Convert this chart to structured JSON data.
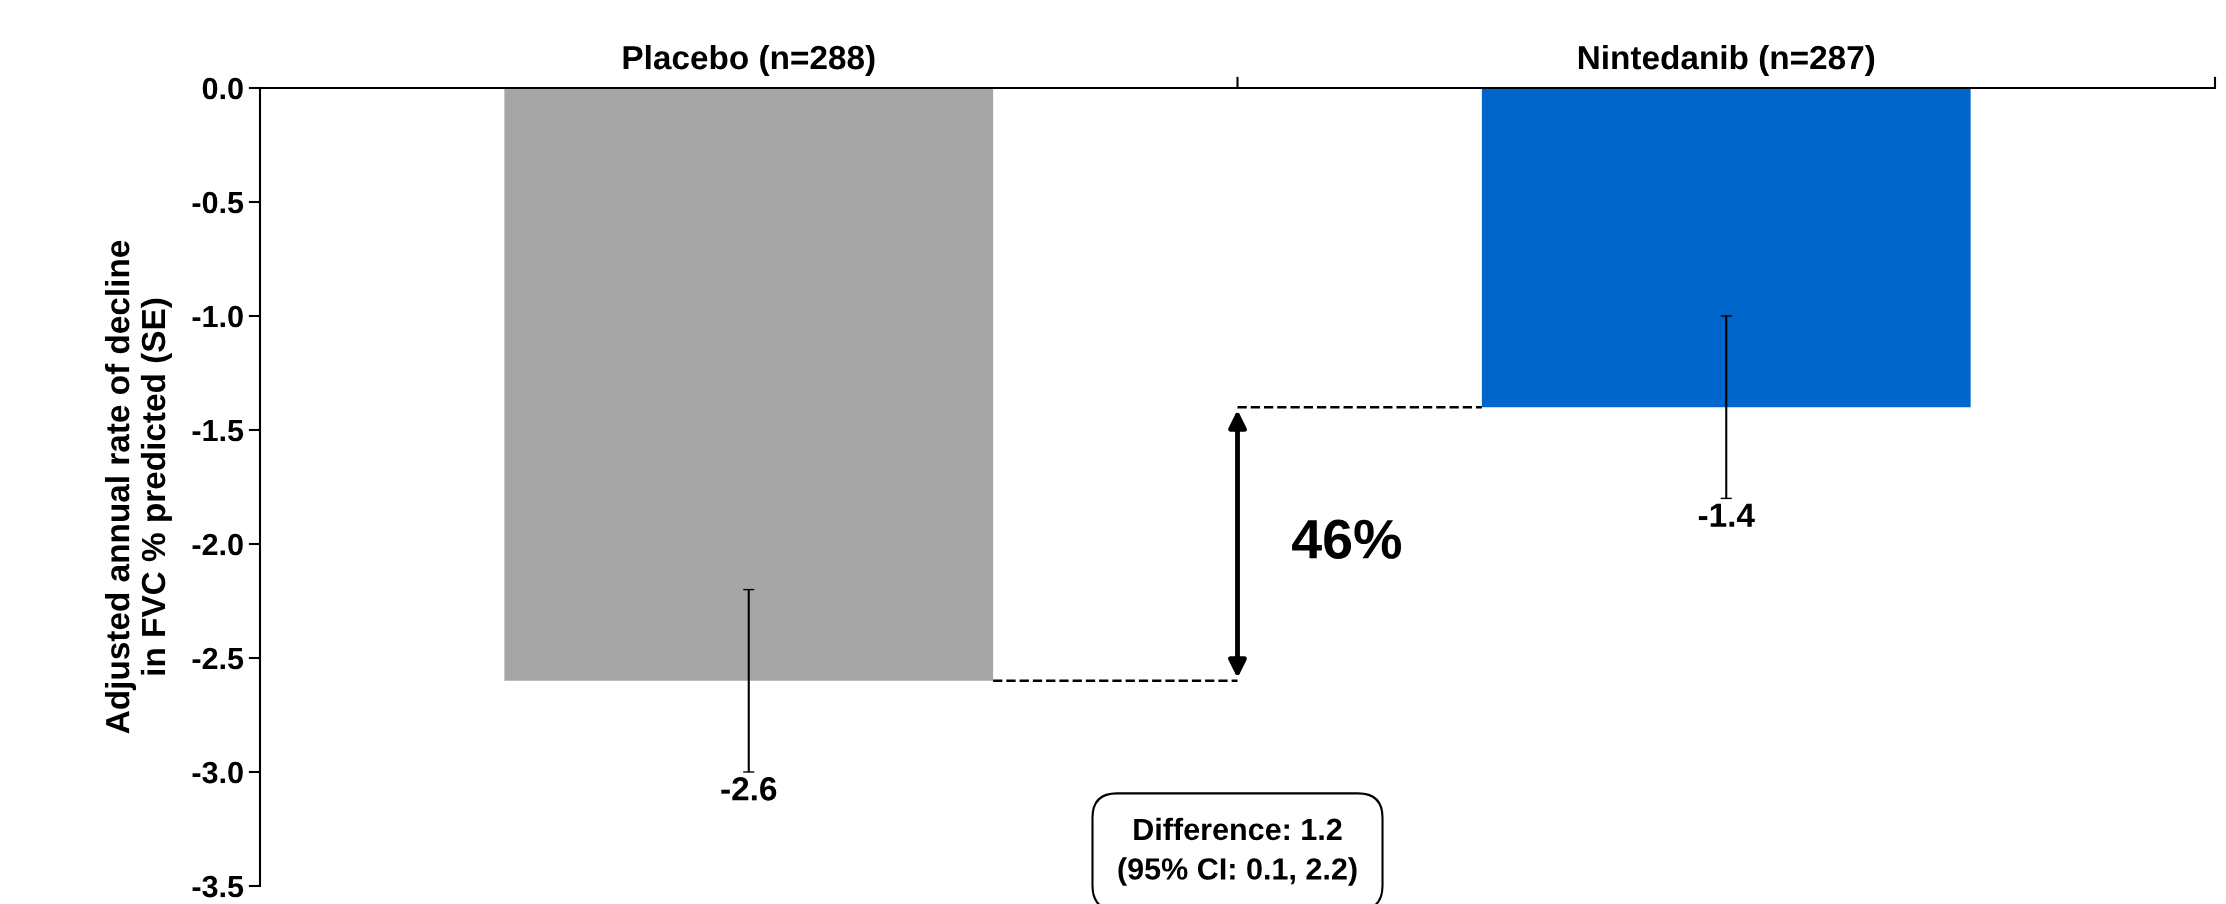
{
  "chart_data": {
    "type": "bar",
    "ylabel": "Adjusted annual rate of decline\nin FVC % predicted (SE)",
    "categories": [
      "Placebo (n=288)",
      "Nintedanib (n=287)"
    ],
    "values": [
      -2.6,
      -1.4
    ],
    "colors": [
      "#a6a6a6",
      "#0066cc"
    ],
    "errors": [
      0.4,
      0.4
    ],
    "value_labels": [
      "-2.6",
      "-1.4"
    ],
    "ylim": [
      -3.5,
      0
    ],
    "yticks": [
      {
        "value": 0,
        "label": "0.0"
      },
      {
        "value": -0.5,
        "label": "-0.5"
      },
      {
        "value": -1,
        "label": "-1.0"
      },
      {
        "value": -1.5,
        "label": "-1.5"
      },
      {
        "value": -2,
        "label": "-2.0"
      },
      {
        "value": -2.5,
        "label": "-2.5"
      },
      {
        "value": -3,
        "label": "-3.0"
      },
      {
        "value": -3.5,
        "label": "-3.5"
      }
    ],
    "grid": false,
    "annotations": [
      "46%",
      "Difference: 1.2\n(95% CI: 0.1, 2.2)"
    ]
  }
}
